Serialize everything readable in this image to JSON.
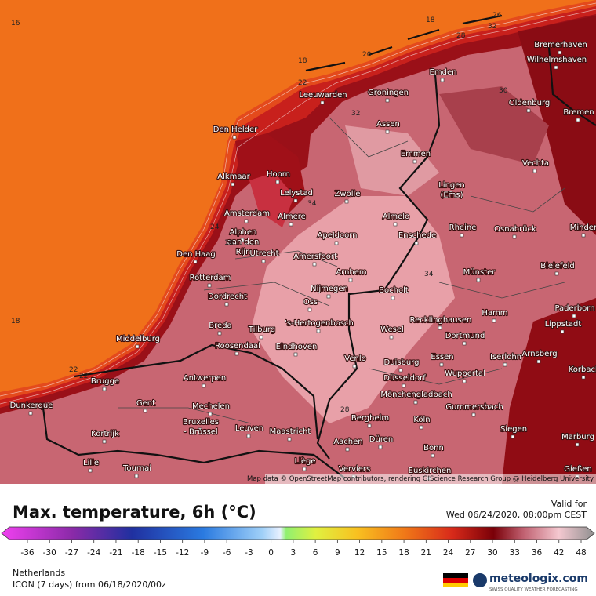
{
  "header": {
    "title": "Max. temperature, 6h (°C)",
    "valid_for": "Valid for",
    "valid_time": "Wed 06/24/2020, 08:00pm CEST"
  },
  "map": {
    "attribution": "Map data © OpenStreetMap contributors, rendering GIScience Research Group @ Heidelberg University",
    "isotherm_labels": [
      "16",
      "18",
      "18",
      "20",
      "22",
      "22",
      "26",
      "28",
      "30",
      "32",
      "32",
      "34",
      "34",
      "18",
      "22",
      "24",
      "28",
      "18"
    ],
    "cities": [
      "Emden",
      "Bremerhaven",
      "Wilhelmshaven",
      "Leeuwarden",
      "Groningen",
      "Oldenburg",
      "Bremen",
      "Den Helder",
      "Assen",
      "Emmen",
      "Vechta",
      "Alkmaar",
      "Hoorn",
      "Lelystad",
      "Zwolle",
      [
        "Lingen",
        "(Ems)"
      ],
      "Amsterdam",
      "Almere",
      "Almelo",
      "Rheine",
      "Osnabrück",
      "Minden",
      [
        "Alphen",
        "aan den",
        "Rijn"
      ],
      "Apeldoorn",
      "Enschede",
      "Den Haag",
      "Utrecht",
      "Amersfoort",
      "Bielefeld",
      "Rotterdam",
      "Arnhem",
      "Münster",
      "Nijmegen",
      "Bocholt",
      "Dordrecht",
      "Oss",
      "Paderborn",
      "Hamm",
      "Lippstadt",
      "Breda",
      "Tilburg",
      "'s-Hertogenbosch",
      "Recklinghausen",
      "Wesel",
      "Middelburg",
      "Roosendaal",
      "Dortmund",
      "Eindhoven",
      "Arnsberg",
      "Essen",
      "Iserlohn",
      "Venlo",
      "Duisburg",
      "Korbach",
      "Antwerpen",
      "Wuppertal",
      "Brugge",
      "Düsseldorf",
      "Mönchengladbach",
      "Gent",
      "Dunkerque",
      "Mechelen",
      "Gummersbach",
      "Bergheim",
      "Köln",
      [
        "Bruxelles",
        "- Brussel"
      ],
      "Leuven",
      "Siegen",
      "Maastricht",
      "Kortrijk",
      "Düren",
      "Marburg",
      "Aachen",
      "Bonn",
      "Liège",
      "Lille",
      "Tournai",
      "Verviers",
      "Euskirchen",
      "Gießen"
    ]
  },
  "legend": {
    "ticks": [
      -36,
      -30,
      -27,
      -24,
      -21,
      -18,
      -15,
      -12,
      -9,
      -6,
      -3,
      0,
      3,
      6,
      9,
      12,
      15,
      18,
      21,
      24,
      27,
      30,
      33,
      36,
      42,
      48
    ]
  },
  "footer": {
    "region": "Netherlands",
    "model": "ICON (7 days) from 06/18/2020/00z",
    "brand": "meteologix.com",
    "slogan": "SWISS QUALITY WEATHER FORECASTING"
  }
}
